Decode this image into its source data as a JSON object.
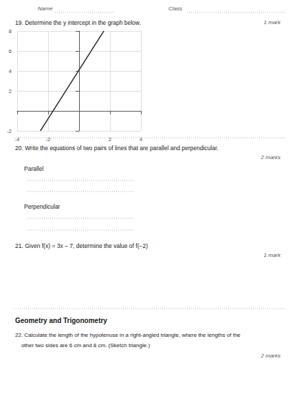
{
  "chart_data": {
    "type": "line",
    "x": [
      -2.5,
      1.6
    ],
    "values": [
      -2.0,
      8.0
    ],
    "color": "#333333",
    "xlim": [
      -4,
      4
    ],
    "xticks": [
      -4,
      -2,
      2,
      4
    ],
    "ylim": [
      -2,
      8
    ],
    "yticks": [
      -2,
      2,
      4,
      6,
      8
    ],
    "grid": true,
    "annotations": [
      "Name",
      "Class",
      "19. Determine the y intercept in the graph below.",
      "1 mark",
      "20. Write the equations of two pairs of lines that are parallel and perpendicular.",
      "2 marks",
      "Parallel",
      "Perpendicular",
      "21. Given f(x) = 3x − 7, determine the value of f(−2)",
      "1 mark",
      "Geometry and Trigonometry",
      "22. Calculate the length of the hypotenuse in a right-angled triangle, where the lengths of the",
      "    other two sides are 6 cm and 8 cm. (Sketch triangle.)",
      "2 marks"
    ]
  }
}
